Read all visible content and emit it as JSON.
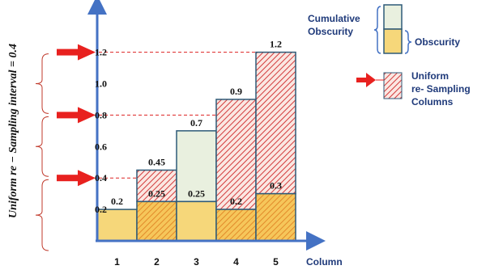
{
  "side_label": "Uniform re − Sampling interval = 0.4",
  "x_axis_label": "Column",
  "y_ticks": [
    "1.2",
    "1.0",
    "0.8",
    "0.6",
    "0.4",
    "0.2"
  ],
  "columns": [
    {
      "label": "1",
      "obscurity": 0.2,
      "cumulative": 0.2,
      "resampled": false,
      "top_label": "0.2",
      "inner_label": ""
    },
    {
      "label": "2",
      "obscurity": 0.25,
      "cumulative": 0.45,
      "resampled": true,
      "top_label": "0.45",
      "inner_label": "0.25"
    },
    {
      "label": "3",
      "obscurity": 0.25,
      "cumulative": 0.7,
      "resampled": false,
      "top_label": "0.7",
      "inner_label": "0.25"
    },
    {
      "label": "4",
      "obscurity": 0.2,
      "cumulative": 0.9,
      "resampled": true,
      "top_label": "0.9",
      "inner_label": "0.2"
    },
    {
      "label": "5",
      "obscurity": 0.3,
      "cumulative": 1.2,
      "resampled": true,
      "top_label": "1.2",
      "inner_label": "0.3"
    }
  ],
  "sampling_levels": [
    1.2,
    0.8,
    0.4
  ],
  "legend": {
    "cumulative_label_line1": "Cumulative",
    "cumulative_label_line2": "Obscurity",
    "obscurity_label": "Obscurity",
    "resampling_line1": "Uniform",
    "resampling_line2": "re- Sampling",
    "resampling_line3": "Columns"
  },
  "colors": {
    "obscurity_fill": "#f6d77a",
    "cumulative_fill": "#e9f0df",
    "hatch_red": "#d23a3a",
    "hatch_orange": "#e28a2a",
    "axis": "#4472c4",
    "bar_border": "#2e5a78",
    "arrow": "#e8211f",
    "brace": "#c0392b",
    "text_blue": "#1f3a7a"
  }
}
